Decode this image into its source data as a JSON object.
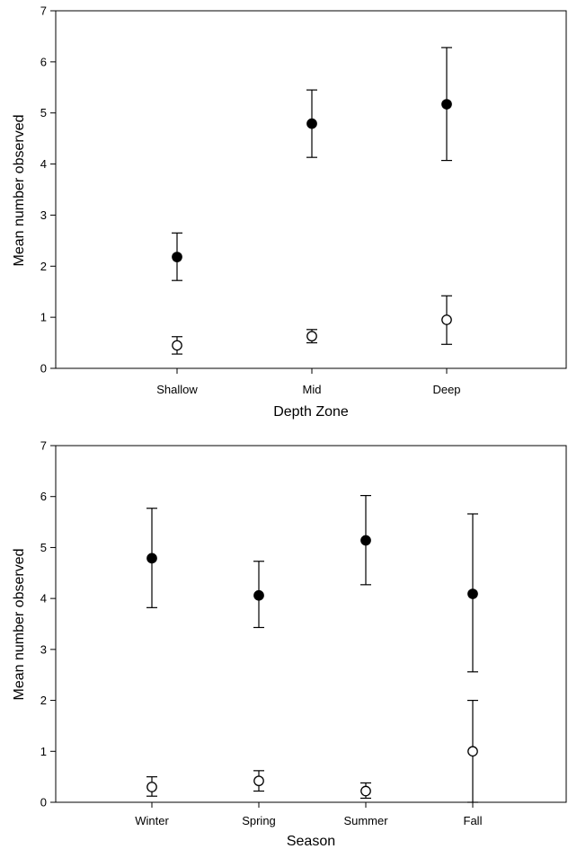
{
  "chart_data": [
    {
      "type": "scatter",
      "xlabel": "Depth Zone",
      "ylabel": "Mean number observed",
      "categories": [
        "Shallow",
        "Mid",
        "Deep"
      ],
      "ylim": [
        0,
        7
      ],
      "yticks": [
        0,
        1,
        2,
        3,
        4,
        5,
        6,
        7
      ],
      "grid": false,
      "series": [
        {
          "marker": "filled-circle",
          "values": [
            2.18,
            4.79,
            5.17
          ],
          "err_low": [
            1.72,
            4.13,
            4.07
          ],
          "err_high": [
            2.65,
            5.45,
            6.28
          ]
        },
        {
          "marker": "open-circle",
          "values": [
            0.45,
            0.63,
            0.95
          ],
          "err_low": [
            0.28,
            0.5,
            0.47
          ],
          "err_high": [
            0.62,
            0.76,
            1.42
          ]
        }
      ]
    },
    {
      "type": "scatter",
      "xlabel": "Season",
      "ylabel": "Mean number observed",
      "categories": [
        "Winter",
        "Spring",
        "Summer",
        "Fall"
      ],
      "ylim": [
        0,
        7
      ],
      "yticks": [
        0,
        1,
        2,
        3,
        4,
        5,
        6,
        7
      ],
      "grid": false,
      "series": [
        {
          "marker": "filled-circle",
          "values": [
            4.79,
            4.06,
            5.14,
            4.09
          ],
          "err_low": [
            3.82,
            3.43,
            4.27,
            2.56
          ],
          "err_high": [
            5.77,
            4.73,
            6.02,
            5.66
          ]
        },
        {
          "marker": "open-circle",
          "values": [
            0.3,
            0.42,
            0.22,
            1.0
          ],
          "err_low": [
            0.12,
            0.22,
            0.08,
            0.0
          ],
          "err_high": [
            0.5,
            0.62,
            0.38,
            2.0
          ]
        }
      ]
    }
  ]
}
